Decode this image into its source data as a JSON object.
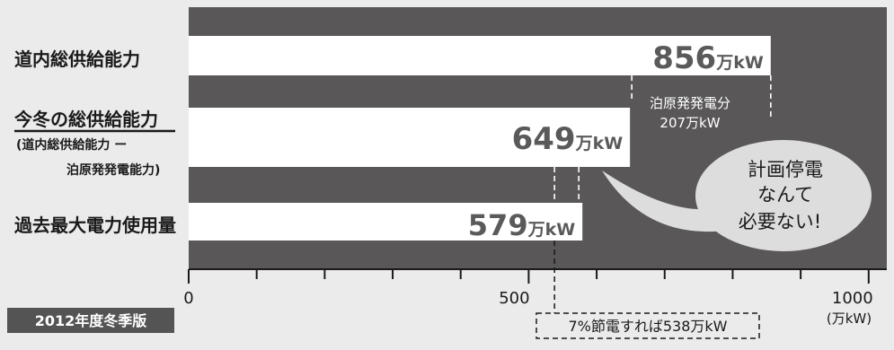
{
  "chart_data": {
    "type": "bar",
    "orientation": "horizontal",
    "categories": [
      "道内総供給能力",
      "今冬の総供給能力",
      "過去最大電力使用量"
    ],
    "category_notes": [
      "",
      "(道内総供給能力 ー\n泊原発発電能力)",
      ""
    ],
    "values": [
      856,
      649,
      579
    ],
    "value_labels": [
      {
        "number": "856",
        "unit": "万kW"
      },
      {
        "number": "649",
        "unit": "万kW"
      },
      {
        "number": "579",
        "unit": "万kW"
      }
    ],
    "xlim": [
      0,
      1000
    ],
    "ticks": [
      "0",
      "500",
      "1000"
    ],
    "unit_label": "(万kW)",
    "edition_badge": "2012年度冬季版",
    "annotations": {
      "tomari": {
        "lines": [
          "泊原発発電分",
          "207万kW"
        ],
        "value": 207
      },
      "saving": {
        "text": "7%節電すれば538万kW",
        "value": 538
      },
      "bubble": {
        "lines": [
          "計画停電",
          "なんて",
          "必要ない!"
        ]
      }
    },
    "colors": {
      "plot_background": "#595757",
      "bar": "#ffffff",
      "value_text": "#5a5a5a",
      "page_background": "#ebebeb",
      "badge_background": "#545454",
      "badge_text": "#ffffff",
      "bubble_background": "#dddddd"
    }
  }
}
